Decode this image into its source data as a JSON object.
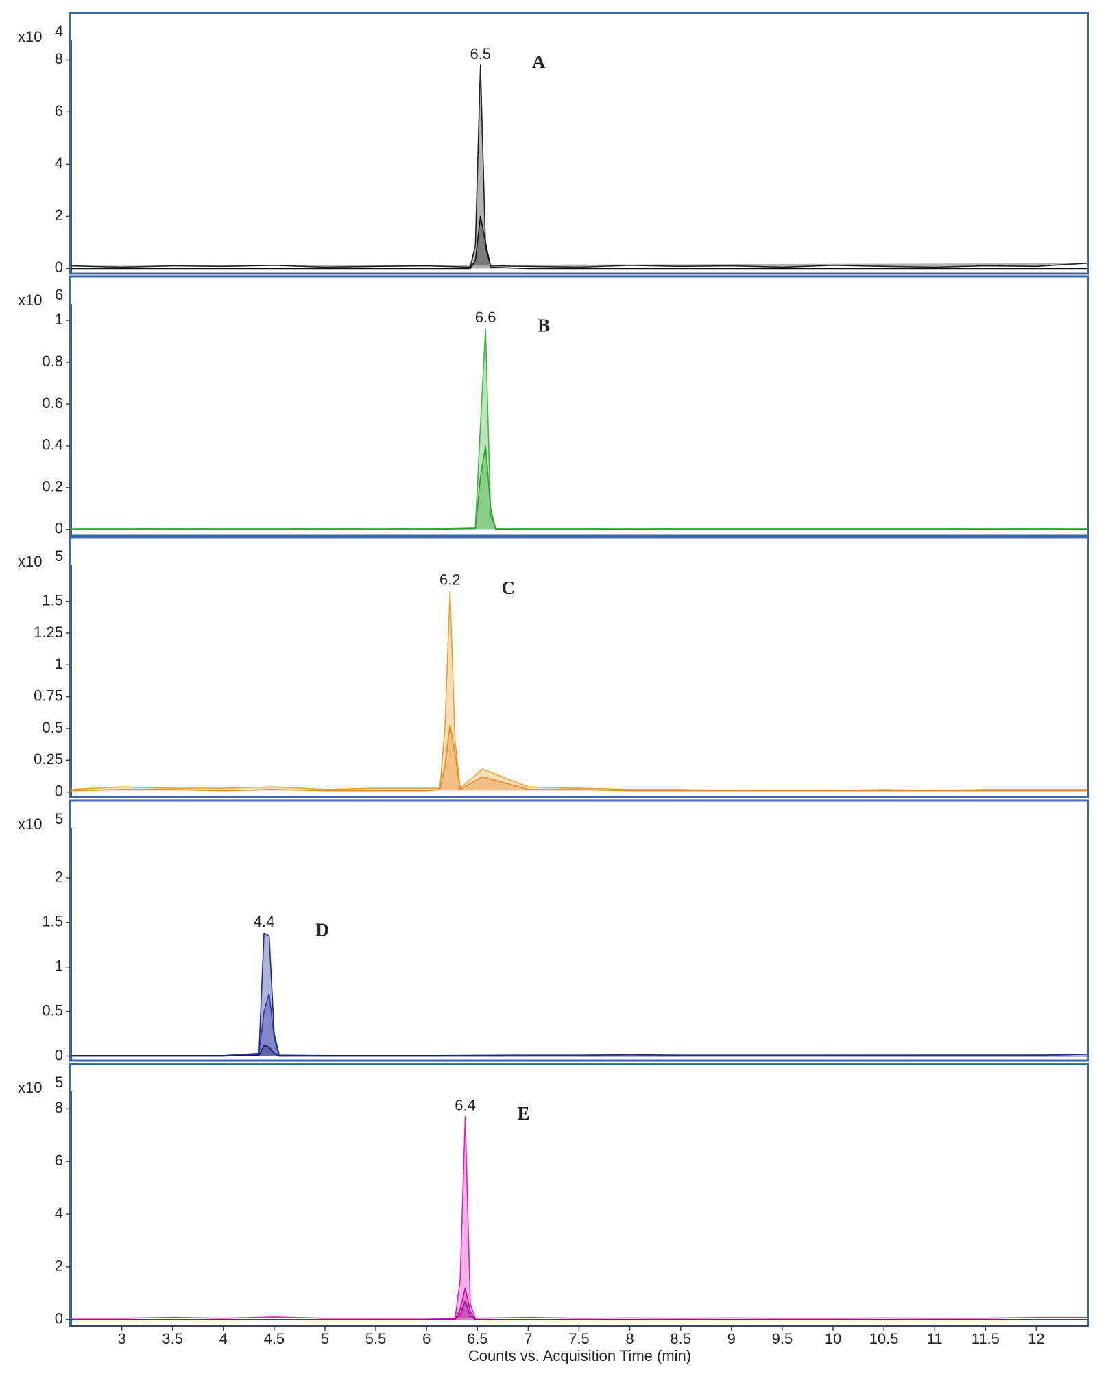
{
  "chart_data": [
    {
      "type": "line",
      "y_multiplier": "x10",
      "y_exponent": "4",
      "peak_label": "6.5",
      "panel_label": "A",
      "xlim": [
        2.49,
        12.51
      ],
      "ylim": [
        -0.2,
        9.8
      ],
      "yticks": [
        0,
        2,
        4,
        6,
        8
      ],
      "x": [
        2.5,
        3,
        3.5,
        4,
        4.5,
        5,
        5.5,
        6,
        6.43,
        6.48,
        6.53,
        6.58,
        6.63,
        7,
        7.5,
        8,
        8.5,
        9,
        9.5,
        10,
        10.5,
        11,
        11.5,
        12,
        12.5
      ],
      "series": [
        {
          "color": "#222222",
          "values": [
            0.1,
            0.05,
            0.1,
            0.08,
            0.12,
            0.05,
            0.08,
            0.1,
            0.05,
            0.9,
            7.8,
            0.8,
            0.1,
            0.08,
            0.05,
            0.12,
            0.08,
            0.1,
            0.05,
            0.12,
            0.08,
            0.05,
            0.1,
            0.08,
            0.2
          ]
        },
        {
          "color": "#111111",
          "values": [
            0,
            0,
            0,
            0,
            0,
            0,
            0,
            0,
            0,
            0.3,
            2.0,
            1.0,
            0.05,
            0,
            0,
            0,
            0,
            0,
            0,
            0,
            0,
            0,
            0,
            0,
            0
          ]
        }
      ]
    },
    {
      "type": "line",
      "y_multiplier": "x10",
      "y_exponent": "6",
      "peak_label": "6.6",
      "panel_label": "B",
      "xlim": [
        2.49,
        12.51
      ],
      "ylim": [
        -0.03,
        1.21
      ],
      "yticks": [
        0,
        0.2,
        0.4,
        0.6,
        0.8,
        1
      ],
      "x": [
        2.5,
        3,
        3.5,
        4,
        4.5,
        5,
        5.5,
        6,
        6.48,
        6.53,
        6.58,
        6.63,
        6.68,
        7,
        7.5,
        8,
        8.5,
        9,
        9.5,
        10,
        10.5,
        11,
        11.5,
        12,
        12.5
      ],
      "series": [
        {
          "color": "#3cb83c",
          "values": [
            0.003,
            0.003,
            0.004,
            0.003,
            0.003,
            0.004,
            0.003,
            0.004,
            0.01,
            0.5,
            0.96,
            0.07,
            0.005,
            0.004,
            0.004,
            0.005,
            0.004,
            0.004,
            0.004,
            0.004,
            0.004,
            0.004,
            0.005,
            0.004,
            0.005
          ]
        },
        {
          "color": "#2e9e2e",
          "values": [
            0,
            0,
            0,
            0,
            0,
            0,
            0,
            0,
            0.005,
            0.25,
            0.4,
            0.1,
            0,
            0,
            0,
            0,
            0,
            0,
            0,
            0,
            0,
            0,
            0,
            0,
            0
          ]
        }
      ]
    },
    {
      "type": "line",
      "y_multiplier": "x10",
      "y_exponent": "5",
      "peak_label": "6.2",
      "panel_label": "C",
      "xlim": [
        2.49,
        12.51
      ],
      "ylim": [
        -0.04,
        2.0
      ],
      "yticks": [
        0,
        0.25,
        0.5,
        0.75,
        1,
        1.25,
        1.5
      ],
      "x": [
        2.5,
        3,
        3.5,
        4,
        4.5,
        5,
        5.5,
        6,
        6.13,
        6.18,
        6.23,
        6.28,
        6.33,
        6.55,
        7,
        7.5,
        8,
        8.5,
        9,
        9.5,
        10,
        10.5,
        11,
        11.5,
        12,
        12.5
      ],
      "series": [
        {
          "color": "#f0a030",
          "values": [
            0.02,
            0.04,
            0.03,
            0.03,
            0.04,
            0.02,
            0.03,
            0.03,
            0.03,
            0.5,
            1.58,
            0.4,
            0.03,
            0.18,
            0.04,
            0.03,
            0.02,
            0.02,
            0.01,
            0.01,
            0.01,
            0.02,
            0.01,
            0.02,
            0.02,
            0.02
          ]
        },
        {
          "color": "#e08a20",
          "values": [
            0.01,
            0.02,
            0.02,
            0.01,
            0.02,
            0.01,
            0.01,
            0.01,
            0.02,
            0.2,
            0.53,
            0.3,
            0.02,
            0.12,
            0.02,
            0.02,
            0.01,
            0.01,
            0.01,
            0.01,
            0.01,
            0.01,
            0.01,
            0.01,
            0.01,
            0.01
          ]
        }
      ]
    },
    {
      "type": "line",
      "y_multiplier": "x10",
      "y_exponent": "5",
      "peak_label": "4.4",
      "panel_label": "D",
      "xlim": [
        2.49,
        12.51
      ],
      "ylim": [
        -0.05,
        2.87
      ],
      "yticks": [
        0,
        0.5,
        1,
        1.5,
        2
      ],
      "x": [
        2.5,
        3,
        3.5,
        4,
        4.35,
        4.4,
        4.45,
        4.5,
        4.55,
        5,
        5.5,
        6,
        6.5,
        7,
        7.5,
        8,
        8.5,
        9,
        9.5,
        10,
        10.5,
        11,
        11.5,
        12,
        12.5
      ],
      "series": [
        {
          "color": "#1f2a8c",
          "values": [
            0.005,
            0.005,
            0.005,
            0.005,
            0.03,
            1.38,
            1.35,
            0.25,
            0.01,
            0.005,
            0.005,
            0.005,
            0.008,
            0.01,
            0.01,
            0.015,
            0.01,
            0.01,
            0.01,
            0.01,
            0.01,
            0.01,
            0.01,
            0.01,
            0.02
          ]
        },
        {
          "color": "#2a3aa8",
          "values": [
            0,
            0,
            0,
            0,
            0.02,
            0.5,
            0.7,
            0.2,
            0,
            0,
            0,
            0,
            0,
            0,
            0,
            0,
            0,
            0,
            0,
            0,
            0,
            0,
            0,
            0,
            0
          ]
        },
        {
          "color": "#101a70",
          "values": [
            0,
            0,
            0,
            0,
            0.01,
            0.12,
            0.1,
            0.03,
            0,
            0,
            0,
            0,
            0,
            0,
            0,
            0,
            0,
            0,
            0,
            0,
            0,
            0,
            0,
            0,
            0
          ]
        }
      ]
    },
    {
      "type": "line",
      "y_multiplier": "x10",
      "y_exponent": "5",
      "peak_label": "6.4",
      "panel_label": "E",
      "xlim": [
        2.49,
        12.51
      ],
      "ylim": [
        -0.24,
        9.7
      ],
      "yticks": [
        0,
        2,
        4,
        6,
        8
      ],
      "xlabel": "Counts vs. Acquisition Time (min)",
      "xticks": [
        3,
        3.5,
        4,
        4.5,
        5,
        5.5,
        6,
        6.5,
        7,
        7.5,
        8,
        8.5,
        9,
        9.5,
        10,
        10.5,
        11,
        11.5,
        12
      ],
      "x": [
        2.5,
        3,
        3.5,
        4,
        4.5,
        5,
        5.5,
        6,
        6.28,
        6.33,
        6.38,
        6.43,
        6.48,
        7,
        7.5,
        8,
        8.5,
        9,
        9.5,
        10,
        10.5,
        11,
        11.5,
        12,
        12.5
      ],
      "series": [
        {
          "color": "#e020c0",
          "values": [
            0.05,
            0.05,
            0.08,
            0.05,
            0.1,
            0.05,
            0.05,
            0.05,
            0.05,
            1.5,
            7.7,
            0.6,
            0.05,
            0.08,
            0.05,
            0.06,
            0.05,
            0.06,
            0.05,
            0.05,
            0.06,
            0.05,
            0.05,
            0.08,
            0.08
          ]
        },
        {
          "color": "#c010a0",
          "values": [
            0,
            0,
            0,
            0,
            0,
            0,
            0,
            0,
            0.02,
            0.4,
            1.2,
            0.3,
            0,
            0,
            0,
            0,
            0,
            0,
            0,
            0,
            0,
            0,
            0,
            0,
            0
          ]
        },
        {
          "color": "#a00890",
          "values": [
            0,
            0,
            0,
            0,
            0,
            0,
            0,
            0,
            0.01,
            0.2,
            0.7,
            0.15,
            0,
            0,
            0,
            0,
            0,
            0,
            0,
            0,
            0,
            0,
            0,
            0,
            0
          ]
        }
      ]
    }
  ]
}
